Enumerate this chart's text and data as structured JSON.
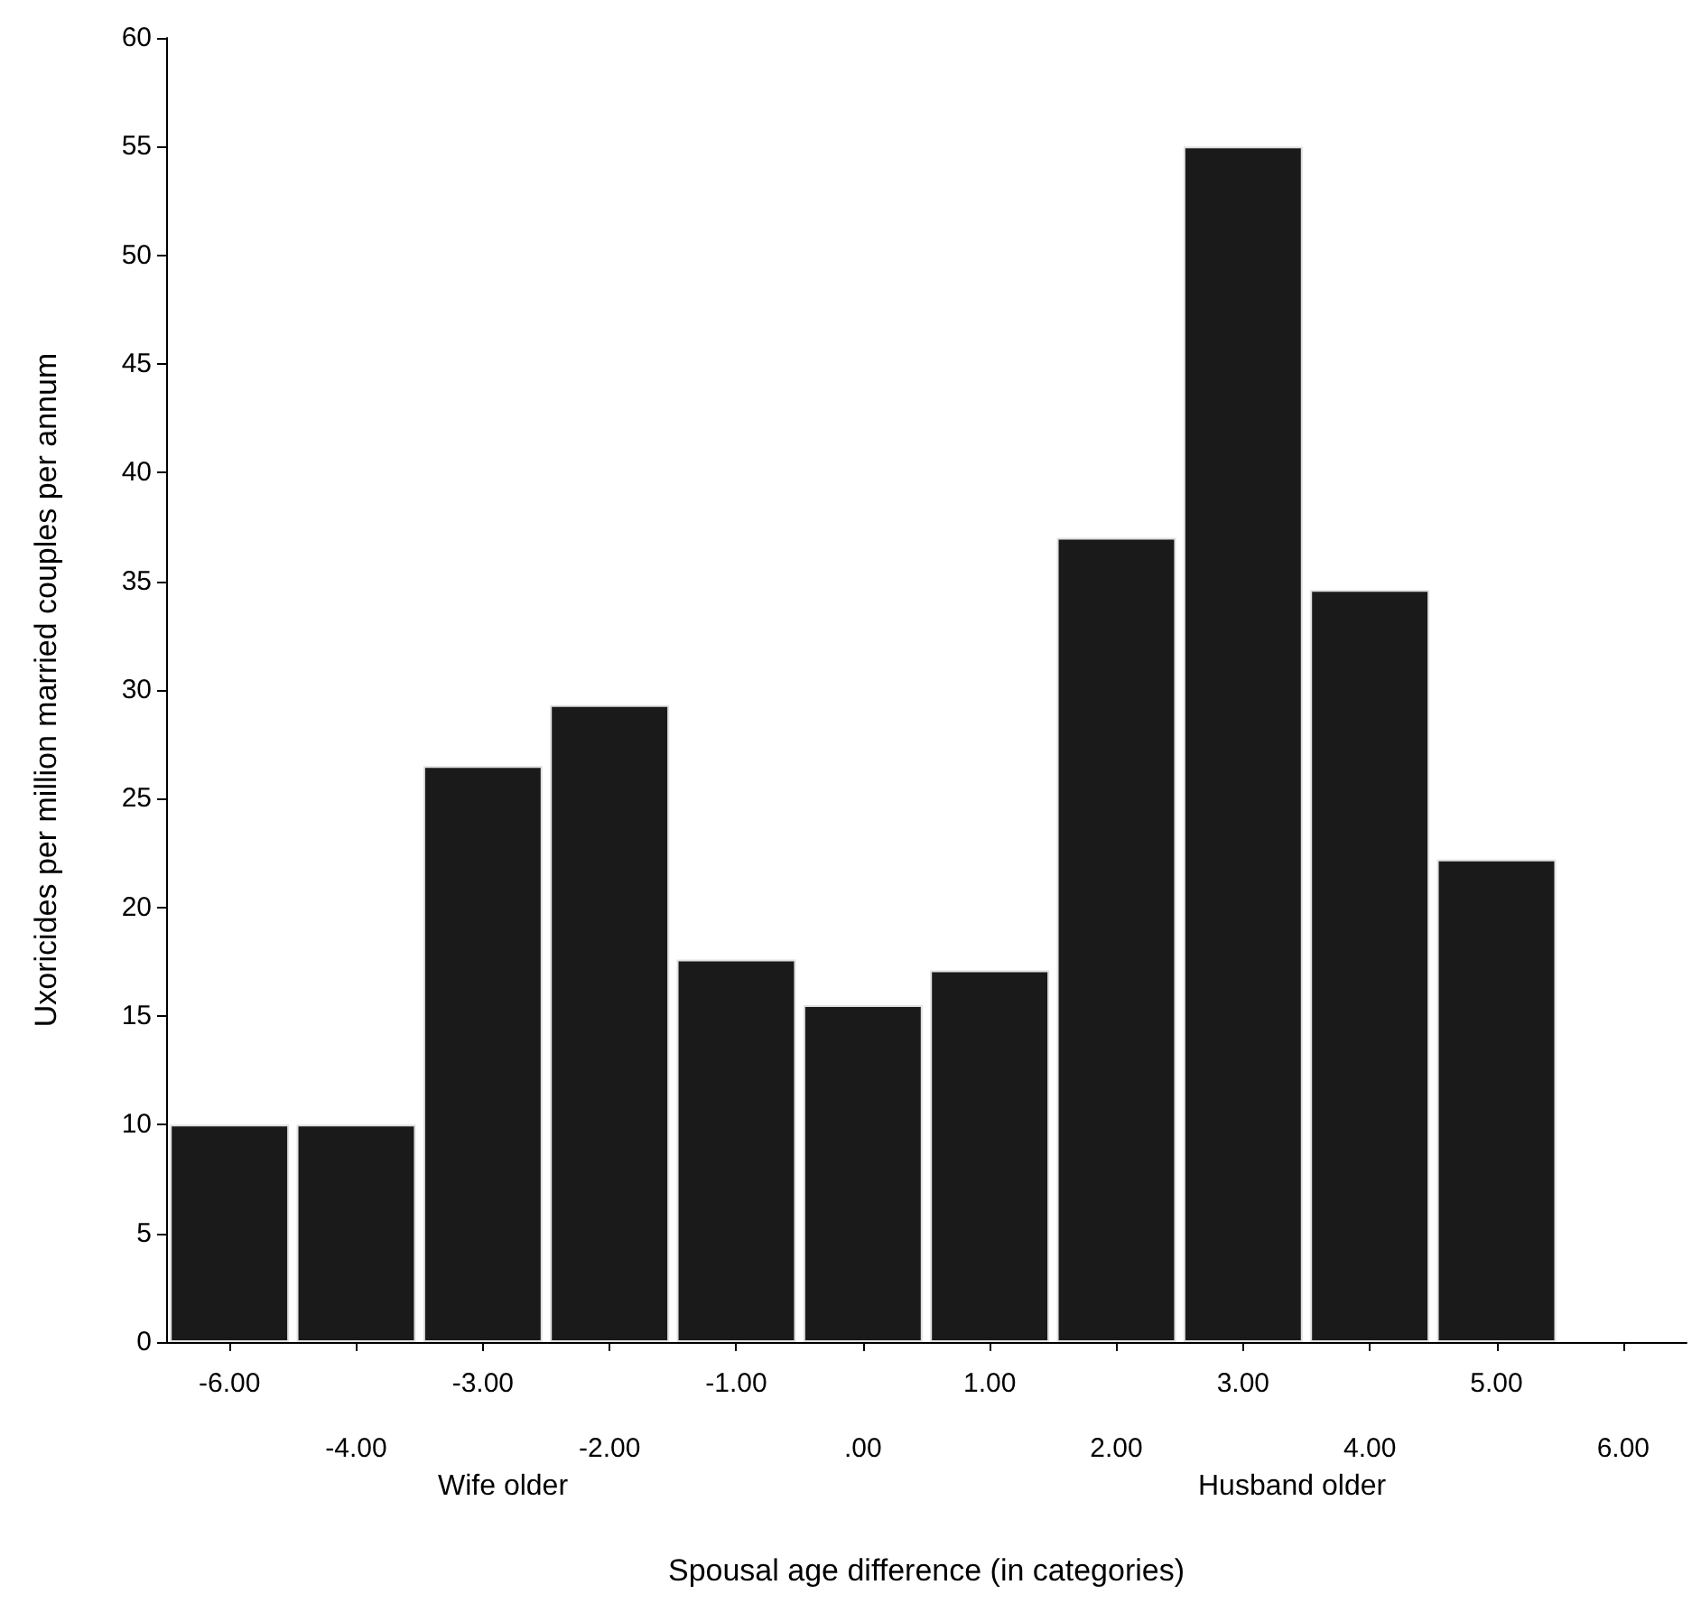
{
  "chart_data": {
    "type": "bar",
    "xlabel": "Spousal age difference (in categories)",
    "ylabel": "Uxoricides per million married couples per annum",
    "categories": [
      "-6.00",
      "-4.00",
      "-3.00",
      "-2.00",
      "-1.00",
      ".00",
      "1.00",
      "2.00",
      "3.00",
      "4.00",
      "5.00",
      "6.00"
    ],
    "values": [
      10,
      10,
      26.5,
      29.3,
      17.6,
      15.5,
      17.1,
      37,
      55,
      34.6,
      22.2,
      null
    ],
    "color": "#1a1a1a",
    "ylim": [
      0,
      60
    ],
    "yticks": [
      0,
      5,
      10,
      15,
      20,
      25,
      30,
      35,
      40,
      45,
      50,
      55,
      60
    ],
    "grid": false,
    "annotations": [
      "Wife older",
      "Husband older"
    ]
  }
}
